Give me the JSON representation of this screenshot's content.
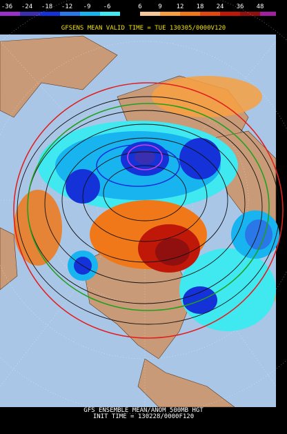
{
  "legend": {
    "labels": [
      "-36",
      "-24",
      "-18",
      "-12",
      "-9",
      "-6",
      "6",
      "9",
      "12",
      "18",
      "24",
      "36",
      "48"
    ]
  },
  "header": {
    "title": "GFSENS MEAN VALID TIME = TUE 130305/0000V120"
  },
  "footer": {
    "line1": "GFS ENSEMBLE MEAN/ANOM 500MB HGT",
    "line2": "INIT TIME = 130228/0000F120"
  }
}
